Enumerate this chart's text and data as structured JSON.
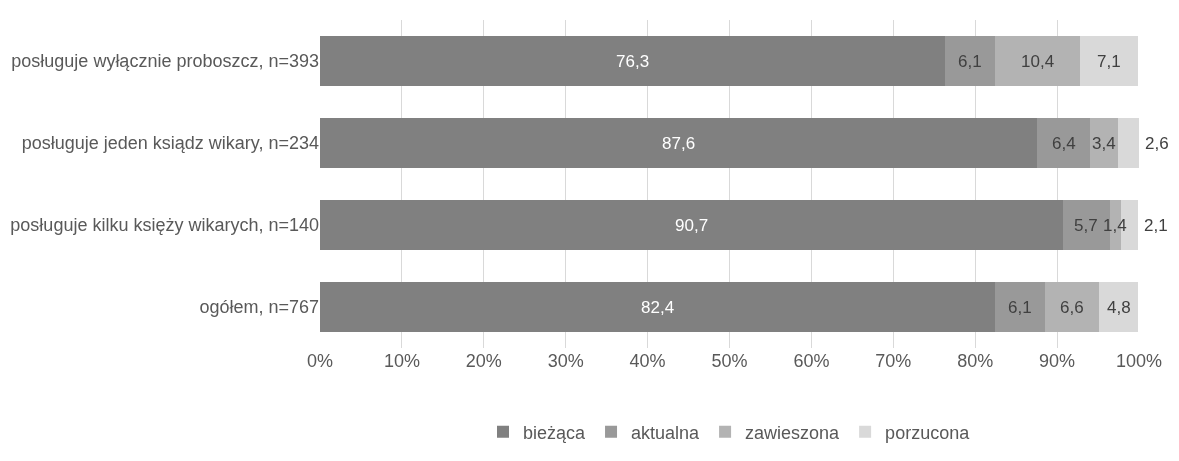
{
  "chart_data": {
    "type": "bar",
    "orientation": "horizontal",
    "stacked": true,
    "grid": "x",
    "legend": "bottom",
    "categories": [
      "posługuje wyłącznie proboszcz, n=393",
      "posługuje jeden ksiądz wikary, n=234",
      "posługuje kilku księży wikarych, n=140",
      "ogółem, n=767"
    ],
    "series": [
      {
        "name": "bieżąca",
        "color": "#808080",
        "values": [
          76.3,
          87.6,
          90.7,
          82.4
        ],
        "value_labels": [
          "76,3",
          "87,6",
          "90,7",
          "82,4"
        ]
      },
      {
        "name": "aktualna",
        "color": "#999999",
        "values": [
          6.1,
          6.4,
          5.7,
          6.1
        ],
        "value_labels": [
          "6,1",
          "6,4",
          "5,7",
          "6,1"
        ]
      },
      {
        "name": "zawieszona",
        "color": "#b3b3b3",
        "values": [
          10.4,
          3.4,
          1.4,
          6.6
        ],
        "value_labels": [
          "10,4",
          "3,4",
          "1,4",
          "6,6"
        ]
      },
      {
        "name": "porzucona",
        "color": "#d9d9d9",
        "values": [
          7.1,
          2.6,
          2.1,
          4.8
        ],
        "value_labels": [
          "7,1",
          "2,6",
          "2,1",
          "4,8"
        ]
      }
    ],
    "xlim": [
      0,
      100
    ],
    "xticks": [
      {
        "value": 0,
        "label": "0%"
      },
      {
        "value": 10,
        "label": "10%"
      },
      {
        "value": 20,
        "label": "20%"
      },
      {
        "value": 30,
        "label": "30%"
      },
      {
        "value": 40,
        "label": "40%"
      },
      {
        "value": 50,
        "label": "50%"
      },
      {
        "value": 60,
        "label": "60%"
      },
      {
        "value": 70,
        "label": "70%"
      },
      {
        "value": 80,
        "label": "80%"
      },
      {
        "value": 90,
        "label": "90%"
      },
      {
        "value": 100,
        "label": "100%"
      }
    ]
  }
}
